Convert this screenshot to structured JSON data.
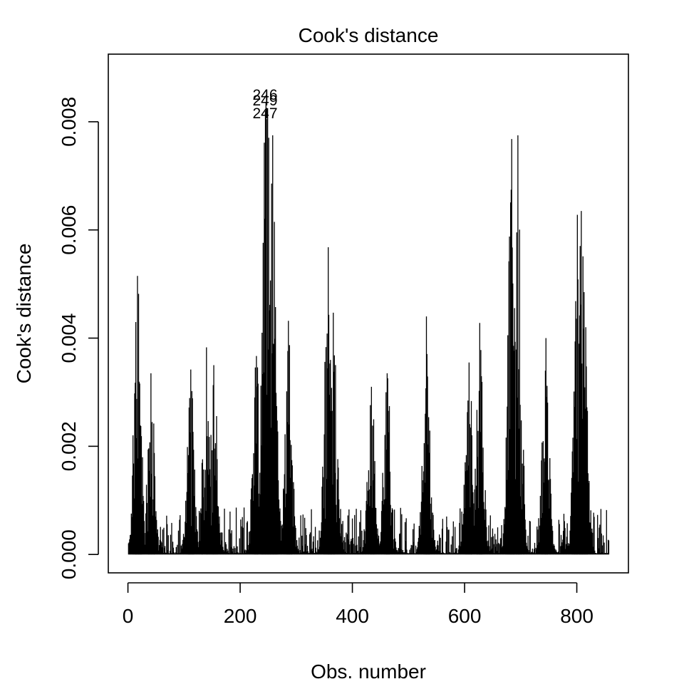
{
  "chart_data": {
    "type": "bar",
    "title": "Cook's distance",
    "xlabel": "Obs. number",
    "ylabel": "Cook's distance",
    "xlim": [
      -35,
      892
    ],
    "ylim": [
      -0.00034,
      0.00925
    ],
    "xticks": [
      0,
      200,
      400,
      600,
      800
    ],
    "xtick_labels": [
      "0",
      "200",
      "400",
      "600",
      "800"
    ],
    "yticks": [
      0.0,
      0.002,
      0.004,
      0.006,
      0.008
    ],
    "ytick_labels": [
      "0.000",
      "0.002",
      "0.004",
      "0.006",
      "0.008"
    ],
    "n_obs": 857,
    "bar_color": "#000000",
    "grid": false,
    "peaks": [
      {
        "x": 17,
        "y": 0.00515
      },
      {
        "x": 41,
        "y": 0.00335
      },
      {
        "x": 112,
        "y": 0.00342
      },
      {
        "x": 140,
        "y": 0.00383
      },
      {
        "x": 153,
        "y": 0.0035
      },
      {
        "x": 229,
        "y": 0.00367
      },
      {
        "x": 245,
        "y": 0.0082
      },
      {
        "x": 246,
        "y": 0.00835
      },
      {
        "x": 247,
        "y": 0.00805
      },
      {
        "x": 249,
        "y": 0.00825
      },
      {
        "x": 258,
        "y": 0.00775
      },
      {
        "x": 286,
        "y": 0.00432
      },
      {
        "x": 357,
        "y": 0.00568
      },
      {
        "x": 366,
        "y": 0.00447
      },
      {
        "x": 434,
        "y": 0.0031
      },
      {
        "x": 462,
        "y": 0.00335
      },
      {
        "x": 532,
        "y": 0.0044
      },
      {
        "x": 608,
        "y": 0.00355
      },
      {
        "x": 627,
        "y": 0.00428
      },
      {
        "x": 684,
        "y": 0.00768
      },
      {
        "x": 695,
        "y": 0.00775
      },
      {
        "x": 745,
        "y": 0.004
      },
      {
        "x": 801,
        "y": 0.00628
      },
      {
        "x": 808,
        "y": 0.00635
      },
      {
        "x": 813,
        "y": 0.00485
      }
    ],
    "labeled_points": [
      {
        "label": "246",
        "x": 246,
        "y": 0.00835
      },
      {
        "label": "249",
        "x": 249,
        "y": 0.00825
      },
      {
        "label": "247",
        "x": 247,
        "y": 0.00805
      }
    ]
  }
}
